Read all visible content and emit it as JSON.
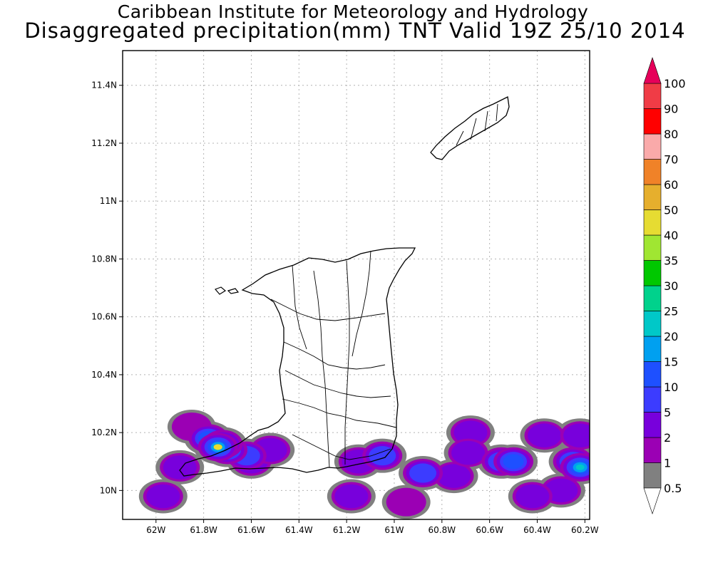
{
  "chart_data": {
    "type": "heatmap",
    "title": "Caribbean Institute for Meteorology and Hydrology",
    "subtitle": "Disaggregated precipitation(mm) TNT Valid 19Z 25/10 2014",
    "x_ticks": [
      "62W",
      "61.8W",
      "61.6W",
      "61.4W",
      "61.2W",
      "61W",
      "60.8W",
      "60.6W",
      "60.4W",
      "60.2W"
    ],
    "x_tick_values": [
      -62.0,
      -61.8,
      -61.6,
      -61.4,
      -61.2,
      -61.0,
      -60.8,
      -60.6,
      -60.4,
      -60.2
    ],
    "y_ticks": [
      "10N",
      "10.2N",
      "10.4N",
      "10.6N",
      "10.8N",
      "11N",
      "11.2N",
      "11.4N"
    ],
    "y_tick_values": [
      10.0,
      10.2,
      10.4,
      10.6,
      10.8,
      11.0,
      11.2,
      11.4
    ],
    "xlim": [
      -62.14,
      -60.18
    ],
    "ylim": [
      9.9,
      11.52
    ],
    "grid": true,
    "colorbar": {
      "levels": [
        "0.5",
        "1",
        "2",
        "5",
        "10",
        "15",
        "20",
        "25",
        "30",
        "35",
        "40",
        "50",
        "60",
        "70",
        "80",
        "90",
        "100"
      ],
      "colors": [
        "#808080",
        "#9b00b4",
        "#7800dc",
        "#3c3cff",
        "#1e50ff",
        "#00a0f0",
        "#00c8c8",
        "#00d28c",
        "#00c800",
        "#a0e632",
        "#e6dc32",
        "#e6af2d",
        "#f08228",
        "#faaaaa",
        "#ff0000",
        "#f03c46",
        "#e6005a"
      ]
    },
    "precipitation_cells": [
      {
        "lon": -61.74,
        "lat": 10.15,
        "value": 40
      },
      {
        "lon": -61.72,
        "lat": 10.16,
        "value": 35
      },
      {
        "lon": -61.7,
        "lat": 10.14,
        "value": 20
      },
      {
        "lon": -61.78,
        "lat": 10.18,
        "value": 10
      },
      {
        "lon": -61.62,
        "lat": 10.12,
        "value": 5
      },
      {
        "lon": -61.6,
        "lat": 10.1,
        "value": 2
      },
      {
        "lon": -61.9,
        "lat": 10.08,
        "value": 2
      },
      {
        "lon": -61.52,
        "lat": 10.14,
        "value": 2
      },
      {
        "lon": -61.97,
        "lat": 9.98,
        "value": 2
      },
      {
        "lon": -61.85,
        "lat": 10.22,
        "value": 1
      },
      {
        "lon": -61.15,
        "lat": 10.1,
        "value": 2
      },
      {
        "lon": -61.05,
        "lat": 10.12,
        "value": 5
      },
      {
        "lon": -60.88,
        "lat": 10.06,
        "value": 5
      },
      {
        "lon": -60.75,
        "lat": 10.05,
        "value": 2
      },
      {
        "lon": -60.55,
        "lat": 10.1,
        "value": 5
      },
      {
        "lon": -60.5,
        "lat": 10.1,
        "value": 10
      },
      {
        "lon": -60.22,
        "lat": 10.08,
        "value": 20
      },
      {
        "lon": -60.25,
        "lat": 10.1,
        "value": 10
      },
      {
        "lon": -60.3,
        "lat": 10.0,
        "value": 2
      },
      {
        "lon": -60.42,
        "lat": 9.98,
        "value": 2
      },
      {
        "lon": -61.18,
        "lat": 9.98,
        "value": 2
      },
      {
        "lon": -60.68,
        "lat": 10.2,
        "value": 2
      },
      {
        "lon": -60.69,
        "lat": 10.13,
        "value": 2
      },
      {
        "lon": -60.37,
        "lat": 10.19,
        "value": 2
      },
      {
        "lon": -60.22,
        "lat": 10.19,
        "value": 2
      },
      {
        "lon": -60.95,
        "lat": 9.96,
        "value": 1
      }
    ]
  }
}
